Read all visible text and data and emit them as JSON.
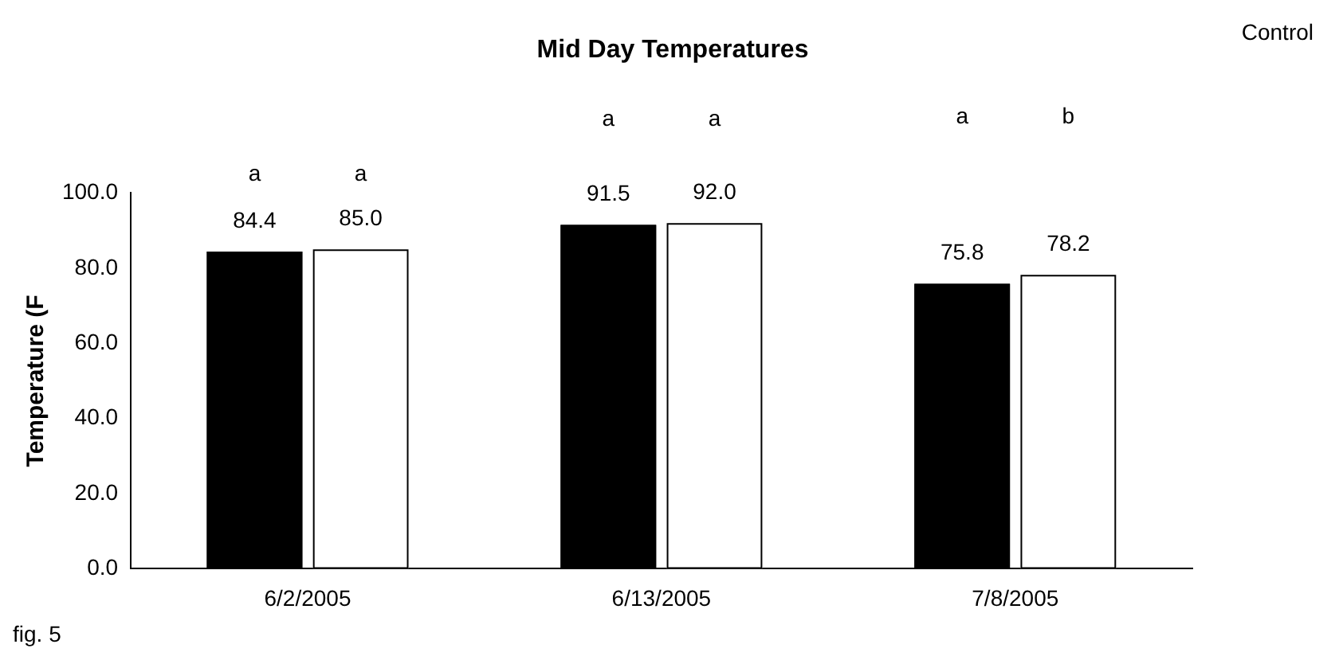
{
  "chart_data": {
    "type": "bar",
    "title": "Mid Day Temperatures",
    "ylabel": "Temperature (F",
    "categories": [
      "6/2/2005",
      "6/13/2005",
      "7/8/2005"
    ],
    "series": [
      {
        "color": "#000000",
        "values": [
          84.4,
          91.5,
          75.8
        ],
        "value_labels": [
          "84.4",
          "91.5",
          "75.8"
        ]
      },
      {
        "name": "Control",
        "color": "#ffffff",
        "values": [
          85.0,
          92.0,
          78.2
        ],
        "value_labels": [
          "85.0",
          "92.0",
          "78.2"
        ]
      }
    ],
    "ylim": [
      0,
      100
    ],
    "yticks": [
      {
        "value": 0,
        "label": "0.0"
      },
      {
        "value": 20,
        "label": "20.0"
      },
      {
        "value": 40,
        "label": "40.0"
      },
      {
        "value": 60,
        "label": "60.0"
      },
      {
        "value": 80,
        "label": "80.0"
      },
      {
        "value": 100,
        "label": "100.0"
      }
    ],
    "grid": false,
    "legend": "top right",
    "annotations": [
      "a",
      "a",
      "a",
      "a",
      "a",
      "b",
      "fig. 5"
    ]
  }
}
